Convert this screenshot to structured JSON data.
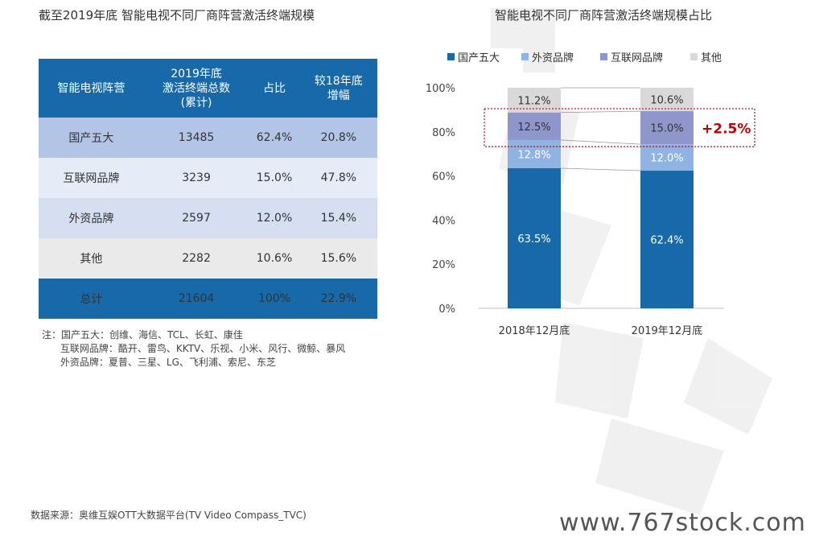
{
  "left_title": "截至2019年底 智能电视不同厂商阵营激活终端规模",
  "table": {
    "headers": [
      "智能电视阵营",
      "2019年底\n激活终端总数\n(累计)",
      "占比",
      "较18年底\n增幅"
    ],
    "rows": [
      [
        "国产五大",
        "13485",
        "62.4%",
        "20.8%"
      ],
      [
        "互联网品牌",
        "3239",
        "15.0%",
        "47.8%"
      ],
      [
        "外资品牌",
        "2597",
        "12.0%",
        "15.4%"
      ],
      [
        "其他",
        "2282",
        "10.6%",
        "15.6%"
      ],
      [
        "总计",
        "21604",
        "100%",
        "22.9%"
      ]
    ]
  },
  "notes": [
    "注：国产五大：创维、海信、TCL、长虹、康佳",
    "      互联网品牌：酷开、雷鸟、KKTV、乐视、小米、风行、微鲸、暴风",
    "      外资品牌：夏普、三星、LG、飞利浦、索尼、东芝"
  ],
  "source": "数据来源：奥维互娱OTT大数据平台(TV Video Compass_TVC)",
  "site": "www.767stock.com",
  "colors": {
    "domestic": "#1769aa",
    "foreign": "#8fb3e3",
    "internet": "#8e96cc",
    "other": "#d9d9d9",
    "highlight": "#c00000"
  },
  "chart_data": {
    "type": "bar",
    "stacked": true,
    "title": "智能电视不同厂商阵营激活终端规模占比",
    "categories": [
      "2018年12月底",
      "2019年12月底"
    ],
    "series": [
      {
        "name": "国产五大",
        "values": [
          63.5,
          62.4
        ],
        "labels": [
          "63.5%",
          "62.4%"
        ]
      },
      {
        "name": "外资品牌",
        "values": [
          12.8,
          12.0
        ],
        "labels": [
          "12.8%",
          "12.0%"
        ]
      },
      {
        "name": "互联网品牌",
        "values": [
          12.5,
          15.0
        ],
        "labels": [
          "12.5%",
          "15.0%"
        ]
      },
      {
        "name": "其他",
        "values": [
          11.2,
          10.6
        ],
        "labels": [
          "11.2%",
          "10.6%"
        ]
      }
    ],
    "legend_order": [
      "国产五大",
      "外资品牌",
      "互联网品牌",
      "其他"
    ],
    "yticks": [
      "0%",
      "20%",
      "40%",
      "60%",
      "80%",
      "100%"
    ],
    "ylim": [
      0,
      100
    ],
    "annotation": "+2.5%",
    "legend": "top"
  }
}
